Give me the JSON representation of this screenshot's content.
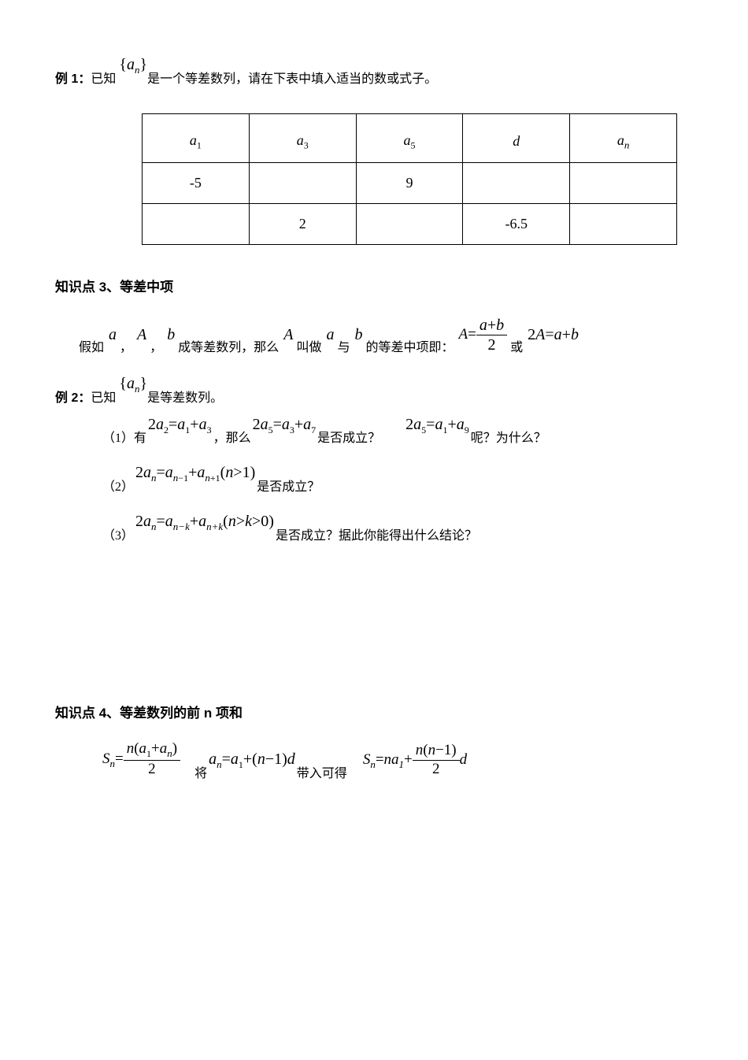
{
  "example1": {
    "label": "例 1：",
    "prefix": "已知",
    "expr": "{<span class=\"it\">a<span class=\"sub-i\">n</span></span>}",
    "suffix": "是一个等差数列，请在下表中填入适当的数或式子。"
  },
  "table": {
    "headers": {
      "c1": "<span class=\"it\">a</span><span class=\"sub\">1</span>",
      "c2": "<span class=\"it\">a</span><span class=\"sub\">3</span>",
      "c3": "<span class=\"it\">a</span><span class=\"sub\">5</span>",
      "c4": "<span class=\"it\">d</span>",
      "c5": "<span class=\"it\">a<span class=\"sub-i\">n</span></span>"
    },
    "r1": {
      "c1": "-5",
      "c2": "",
      "c3": "9",
      "c4": "",
      "c5": ""
    },
    "r2": {
      "c1": "",
      "c2": "2",
      "c3": "",
      "c4": "-6.5",
      "c5": ""
    }
  },
  "section3": {
    "title": "知识点 3、等差中项",
    "def": {
      "p1": "假如",
      "a": "<span class=\"it\">a</span>",
      "p2": "，",
      "A": "<span class=\"it\">A</span>",
      "p3": "，",
      "b": "<span class=\"it\">b</span>",
      "p4": "成等差数列，那么",
      "A2": "<span class=\"it\">A</span>",
      "p5": "叫做",
      "a2": "<span class=\"it\">a</span>",
      "p6": "与",
      "b2": "<span class=\"it\">b</span>",
      "p7": "的等差中项即：",
      "frac_num": "<span class=\"it\">a</span>+<span class=\"it\">b</span>",
      "frac_den": "2",
      "eqA": "<span class=\"it\">A</span>=",
      "p8": "或",
      "eq2": "2<span class=\"it\">A</span>=<span class=\"it\">a</span>+<span class=\"it\">b</span>"
    }
  },
  "example2": {
    "label": "例 2：",
    "prefix": "已知",
    "expr": "{<span class=\"it\">a<span class=\"sub-i\">n</span></span>}",
    "suffix": "是等差数列。"
  },
  "q1": {
    "num": "（1）有",
    "e1": "2<span class=\"it\">a</span><span class=\"sub\">2</span>=<span class=\"it\">a</span><span class=\"sub\">1</span>+<span class=\"it\">a</span><span class=\"sub\">3</span>",
    "t1": "，那么",
    "e2": "2<span class=\"it\">a</span><span class=\"sub\">5</span>=<span class=\"it\">a</span><span class=\"sub\">3</span>+<span class=\"it\">a</span><span class=\"sub\">7</span>",
    "t2": "是否成立？",
    "e3": "2<span class=\"it\">a</span><span class=\"sub\">5</span>=<span class=\"it\">a</span><span class=\"sub\">1</span>+<span class=\"it\">a</span><span class=\"sub\">9</span>",
    "t3": "呢？为什么？"
  },
  "q2": {
    "num": "（2）",
    "e1": "2<span class=\"it\">a<span class=\"sub-i\">n</span></span>=<span class=\"it\">a<span class=\"sub-i\">n</span></span><span class=\"sub\">−1</span>+<span class=\"it\">a<span class=\"sub-i\">n</span></span><span class=\"sub\">+1</span>(<span class=\"it\">n</span>&gt;1)",
    "t1": "是否成立？"
  },
  "q3": {
    "num": "（3）",
    "e1": "2<span class=\"it\">a<span class=\"sub-i\">n</span></span>=<span class=\"it\">a<span class=\"sub-i\">n−k</span></span>+<span class=\"it\">a<span class=\"sub-i\">n+k</span></span>(<span class=\"it\">n</span>&gt;<span class=\"it\">k</span>&gt;0)",
    "t1": "是否成立？据此你能得出什么结论？"
  },
  "section4": {
    "title": "知识点 4、等差数列的前 n 项和"
  },
  "sn": {
    "s1_lhs": "<span class=\"it\">S<span class=\"sub-i\">n</span></span>=",
    "s1_num": "<span class=\"it\">n</span>(<span class=\"it\">a</span><span class=\"sub\">1</span>+<span class=\"it\">a<span class=\"sub-i\">n</span></span>)",
    "s1_den": "2",
    "t1": "将",
    "an": "<span class=\"it\">a<span class=\"sub-i\">n</span></span>=<span class=\"it\">a</span><span class=\"sub\">1</span>+(<span class=\"it\">n</span>−1)<span class=\"it\">d</span>",
    "t2": "带入可得",
    "s2_lhs": "<span class=\"it\">S<span class=\"sub-i\">n</span></span>=<span class=\"it\">na</span><span class=\"sub-i\">1</span>+",
    "s2_num": "<span class=\"it\">n</span>(<span class=\"it\">n</span>−1)",
    "s2_den": "2",
    "s2_suffix": "<span class=\"it\">d</span>"
  }
}
